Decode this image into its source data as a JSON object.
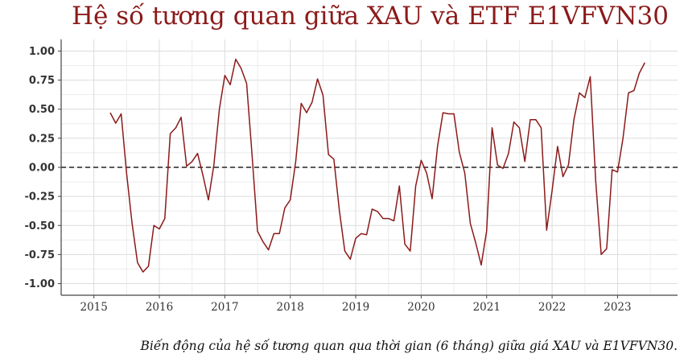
{
  "chart_data": {
    "type": "line",
    "title": "Hệ số tương quan giữa XAU và ETF E1VFVN30",
    "caption": "Biến động của hệ số tương quan qua thời gian (6 tháng) giữa giá XAU và E1VFVN30.",
    "xlim": [
      "2014-07-01",
      "2023-12-01"
    ],
    "ylim": [
      -1.1,
      1.1
    ],
    "x_ticks": [
      "2015",
      "2016",
      "2017",
      "2018",
      "2019",
      "2020",
      "2021",
      "2022",
      "2023"
    ],
    "y_ticks": [
      "1.00",
      "0.75",
      "0.50",
      "0.25",
      "0.00",
      "-0.25",
      "-0.50",
      "-0.75",
      "-1.00"
    ],
    "y_tick_values": [
      1,
      0.75,
      0.5,
      0.25,
      0,
      -0.25,
      -0.5,
      -0.75,
      -1
    ],
    "reference_line": {
      "y": 0,
      "style": "dashed"
    },
    "grid": true,
    "line_color": "#8b1a1a",
    "series": [
      {
        "x": [
          "2015-04",
          "2015-05",
          "2015-06",
          "2015-07",
          "2015-08",
          "2015-09",
          "2015-10",
          "2015-11",
          "2015-12",
          "2016-01",
          "2016-02",
          "2016-03",
          "2016-04",
          "2016-05",
          "2016-06",
          "2016-07",
          "2016-08",
          "2016-09",
          "2016-10",
          "2016-11",
          "2016-12",
          "2017-01",
          "2017-02",
          "2017-03",
          "2017-04",
          "2017-05",
          "2017-06",
          "2017-07",
          "2017-08",
          "2017-09",
          "2017-10",
          "2017-11",
          "2017-12",
          "2018-01",
          "2018-02",
          "2018-03",
          "2018-04",
          "2018-05",
          "2018-06",
          "2018-07",
          "2018-08",
          "2018-09",
          "2018-10",
          "2018-11",
          "2018-12",
          "2019-01",
          "2019-02",
          "2019-03",
          "2019-04",
          "2019-05",
          "2019-06",
          "2019-07",
          "2019-08",
          "2019-09",
          "2019-10",
          "2019-11",
          "2019-12",
          "2020-01",
          "2020-02",
          "2020-03",
          "2020-04",
          "2020-05",
          "2020-06",
          "2020-07",
          "2020-08",
          "2020-09",
          "2020-10",
          "2020-11",
          "2020-12",
          "2021-01",
          "2021-02",
          "2021-03",
          "2021-04",
          "2021-05",
          "2021-06",
          "2021-07",
          "2021-08",
          "2021-09",
          "2021-10",
          "2021-11",
          "2021-12",
          "2022-01",
          "2022-02",
          "2022-03",
          "2022-04",
          "2022-05",
          "2022-06",
          "2022-07",
          "2022-08",
          "2022-09",
          "2022-10",
          "2022-11",
          "2022-12",
          "2023-01",
          "2023-02",
          "2023-03",
          "2023-04",
          "2023-05",
          "2023-06"
        ],
        "values": [
          0.47,
          0.38,
          0.46,
          -0.05,
          -0.48,
          -0.82,
          -0.9,
          -0.85,
          -0.5,
          -0.53,
          -0.44,
          0.29,
          0.34,
          0.43,
          0.01,
          0.05,
          0.12,
          -0.07,
          -0.28,
          0.02,
          0.5,
          0.79,
          0.71,
          0.93,
          0.85,
          0.72,
          0.1,
          -0.55,
          -0.64,
          -0.71,
          -0.57,
          -0.57,
          -0.35,
          -0.28,
          0.05,
          0.55,
          0.47,
          0.56,
          0.76,
          0.62,
          0.11,
          0.07,
          -0.37,
          -0.72,
          -0.79,
          -0.61,
          -0.57,
          -0.58,
          -0.36,
          -0.38,
          -0.44,
          -0.44,
          -0.46,
          -0.16,
          -0.66,
          -0.72,
          -0.16,
          0.06,
          -0.05,
          -0.27,
          0.18,
          0.47,
          0.46,
          0.46,
          0.13,
          -0.05,
          -0.48,
          -0.65,
          -0.84,
          -0.55,
          0.34,
          0.02,
          -0.01,
          0.12,
          0.39,
          0.34,
          0.05,
          0.41,
          0.41,
          0.34,
          -0.54,
          -0.2,
          0.18,
          -0.08,
          0.02,
          0.41,
          0.64,
          0.6,
          0.78,
          -0.12,
          -0.75,
          -0.7,
          -0.02,
          -0.04,
          0.25,
          0.64,
          0.66,
          0.81,
          0.9
        ]
      }
    ]
  }
}
